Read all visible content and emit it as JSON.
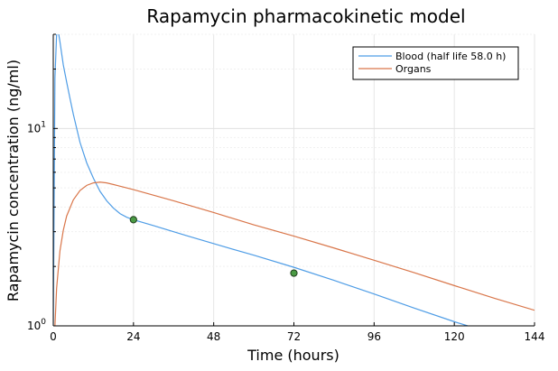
{
  "chart_data": {
    "type": "line",
    "title": "Rapamycin pharmacokinetic model",
    "xlabel": "Time (hours)",
    "ylabel": "Rapamycin concentration (ng/ml)",
    "xlim": [
      0,
      144
    ],
    "ylim": [
      1,
      30
    ],
    "y_scale": "log10",
    "x_ticks": [
      0,
      24,
      48,
      72,
      96,
      120,
      144
    ],
    "x_tick_labels": [
      "0",
      "24",
      "48",
      "72",
      "96",
      "120",
      "144"
    ],
    "y_ticks": [
      1,
      10
    ],
    "y_tick_labels": [
      {
        "base": "10",
        "exp": "0"
      },
      {
        "base": "10",
        "exp": "1"
      }
    ],
    "grid": true,
    "legend_position": "top-right",
    "series": [
      {
        "name": "Blood (half life 58.0 h)",
        "color": "#4f9de6",
        "x": [
          0,
          0.5,
          1,
          1.5,
          2,
          3,
          4,
          5,
          6,
          8,
          10,
          12,
          14,
          16,
          18,
          20,
          22,
          24,
          30,
          40,
          50,
          60,
          72,
          84,
          96,
          108,
          120,
          124
        ],
        "y": [
          1.0,
          18.0,
          30.0,
          31.0,
          27.5,
          21.0,
          17.2,
          14.2,
          11.8,
          8.5,
          6.7,
          5.6,
          4.8,
          4.3,
          3.95,
          3.7,
          3.55,
          3.45,
          3.22,
          2.86,
          2.55,
          2.28,
          1.98,
          1.7,
          1.45,
          1.23,
          1.05,
          1.0
        ]
      },
      {
        "name": "Organs",
        "color": "#d9764a",
        "x": [
          0,
          0.5,
          1,
          2,
          3,
          4,
          6,
          8,
          10,
          12,
          14,
          16,
          20,
          24,
          36,
          48,
          60,
          72,
          84,
          96,
          108,
          120,
          132,
          144
        ],
        "y": [
          0.5,
          1.0,
          1.55,
          2.4,
          3.05,
          3.6,
          4.35,
          4.85,
          5.15,
          5.3,
          5.35,
          5.3,
          5.1,
          4.9,
          4.3,
          3.75,
          3.25,
          2.85,
          2.48,
          2.15,
          1.86,
          1.6,
          1.38,
          1.2
        ]
      }
    ],
    "markers": {
      "color": "#4a9a44",
      "x": [
        24,
        72
      ],
      "y": [
        3.45,
        1.85
      ]
    }
  }
}
